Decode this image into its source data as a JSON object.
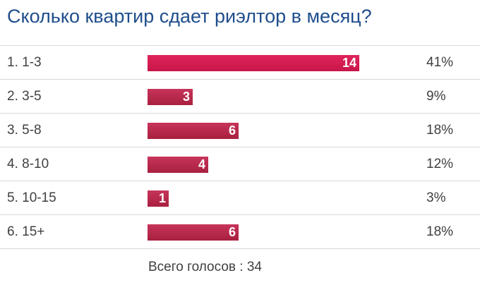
{
  "title": "Сколько квартир сдает риэлтор в месяц?",
  "chart_data": {
    "type": "bar",
    "orientation": "horizontal",
    "title": "Сколько квартир сдает риэлтор в месяц?",
    "categories": [
      "1. 1-3",
      "2. 3-5",
      "3. 5-8",
      "4. 8-10",
      "5. 10-15",
      "6. 15+"
    ],
    "values": [
      14,
      3,
      6,
      4,
      1,
      6
    ],
    "percentages": [
      "41%",
      "9%",
      "18%",
      "12%",
      "3%",
      "18%"
    ],
    "xlim": [
      0,
      14
    ],
    "grid": false,
    "legend": "none"
  },
  "colors": {
    "title": "#1f4e8c",
    "bar": "#b0264a",
    "bar_top": "#d81b50",
    "text": "#404040"
  },
  "total_label": "Всего голосов : 34"
}
